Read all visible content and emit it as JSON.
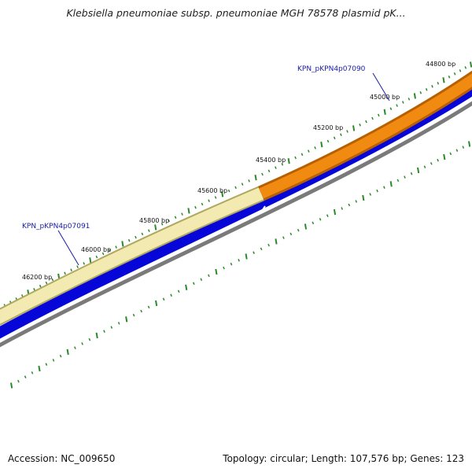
{
  "title": "Klebsiella pneumoniae subsp. pneumoniae MGH 78578 plasmid pK...",
  "footer": {
    "accession": "Accession: NC_009650",
    "stats": "Topology: circular; Length: 107,576 bp; Genes: 123"
  },
  "colors": {
    "forward_gene": "#f08a10",
    "forward_gene_selected": "#efe6a0",
    "reverse_track": "#0a0ae0",
    "backbone": "#808080",
    "ticks": "#2a8a2a",
    "gene_label": "#1a1aa6"
  },
  "ruler": {
    "labels": [
      "44800 bp",
      "45000 bp",
      "45200 bp",
      "45400 bp",
      "45600 bp",
      "45800 bp",
      "46000 bp",
      "46200 bp"
    ]
  },
  "genes": [
    {
      "id": "KPN_pKPN4p07090",
      "label": "KPN_pKPN4p07090"
    },
    {
      "id": "KPN_pKPN4p07091",
      "label": "KPN_pKPN4p07091"
    }
  ]
}
